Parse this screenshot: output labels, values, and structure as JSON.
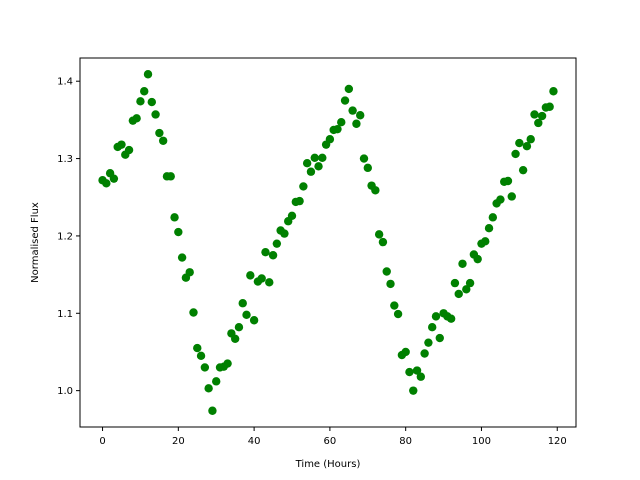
{
  "chart_data": {
    "type": "scatter",
    "title": "",
    "xlabel": "Time (Hours)",
    "ylabel": "Normalised Flux",
    "xlim": [
      -5.95,
      124.95
    ],
    "ylim": [
      0.953,
      1.43
    ],
    "xticks": [
      0,
      20,
      40,
      60,
      80,
      100,
      120
    ],
    "xtick_labels": [
      "0",
      "20",
      "40",
      "60",
      "80",
      "100",
      "120"
    ],
    "yticks": [
      1.0,
      1.1,
      1.2,
      1.3,
      1.4
    ],
    "ytick_labels": [
      "1.0",
      "1.1",
      "1.2",
      "1.3",
      "1.4"
    ],
    "grid": false,
    "marker_color": "#008000",
    "series": [
      {
        "x": [
          0,
          1,
          2,
          3,
          4,
          5,
          6,
          7,
          8,
          9,
          10,
          11,
          12,
          13,
          14,
          15,
          16,
          17,
          18,
          19,
          20,
          21,
          22,
          23,
          24,
          25,
          26,
          27,
          28,
          29,
          30,
          31,
          32,
          33,
          34,
          35,
          36,
          37,
          38,
          39,
          40,
          41,
          42,
          43,
          44,
          45,
          46,
          47,
          48,
          49,
          50,
          51,
          52,
          53,
          54,
          55,
          56,
          57,
          58,
          59,
          60,
          61,
          62,
          63,
          64,
          65,
          66,
          67,
          68,
          69,
          70,
          71,
          72,
          73,
          74,
          75,
          76,
          77,
          78,
          79,
          80,
          81,
          82,
          83,
          84,
          85,
          86,
          87,
          88,
          89,
          90,
          91,
          92,
          93,
          94,
          95,
          96,
          97,
          98,
          99,
          100,
          101,
          102,
          103,
          104,
          105,
          106,
          107,
          108,
          109,
          110,
          111,
          112,
          113,
          114,
          115,
          116,
          117,
          118,
          119
        ],
        "y": [
          1.272,
          1.268,
          1.281,
          1.274,
          1.315,
          1.318,
          1.305,
          1.311,
          1.349,
          1.352,
          1.374,
          1.387,
          1.409,
          1.373,
          1.357,
          1.333,
          1.323,
          1.277,
          1.277,
          1.224,
          1.205,
          1.172,
          1.146,
          1.153,
          1.101,
          1.055,
          1.045,
          1.03,
          1.003,
          0.974,
          1.012,
          1.03,
          1.031,
          1.035,
          1.074,
          1.067,
          1.082,
          1.113,
          1.098,
          1.149,
          1.091,
          1.141,
          1.145,
          1.179,
          1.14,
          1.175,
          1.19,
          1.207,
          1.203,
          1.219,
          1.226,
          1.244,
          1.245,
          1.264,
          1.294,
          1.283,
          1.301,
          1.29,
          1.301,
          1.318,
          1.325,
          1.337,
          1.338,
          1.347,
          1.375,
          1.39,
          1.362,
          1.345,
          1.356,
          1.3,
          1.288,
          1.265,
          1.259,
          1.202,
          1.192,
          1.154,
          1.138,
          1.11,
          1.099,
          1.046,
          1.05,
          1.024,
          1.0,
          1.026,
          1.018,
          1.048,
          1.062,
          1.082,
          1.096,
          1.068,
          1.1,
          1.096,
          1.093,
          1.139,
          1.125,
          1.164,
          1.131,
          1.139,
          1.176,
          1.17,
          1.19,
          1.193,
          1.21,
          1.224,
          1.242,
          1.247,
          1.27,
          1.271,
          1.251,
          1.306,
          1.32,
          1.285,
          1.316,
          1.325,
          1.357,
          1.346,
          1.355,
          1.366,
          1.367,
          1.387
        ]
      }
    ]
  }
}
